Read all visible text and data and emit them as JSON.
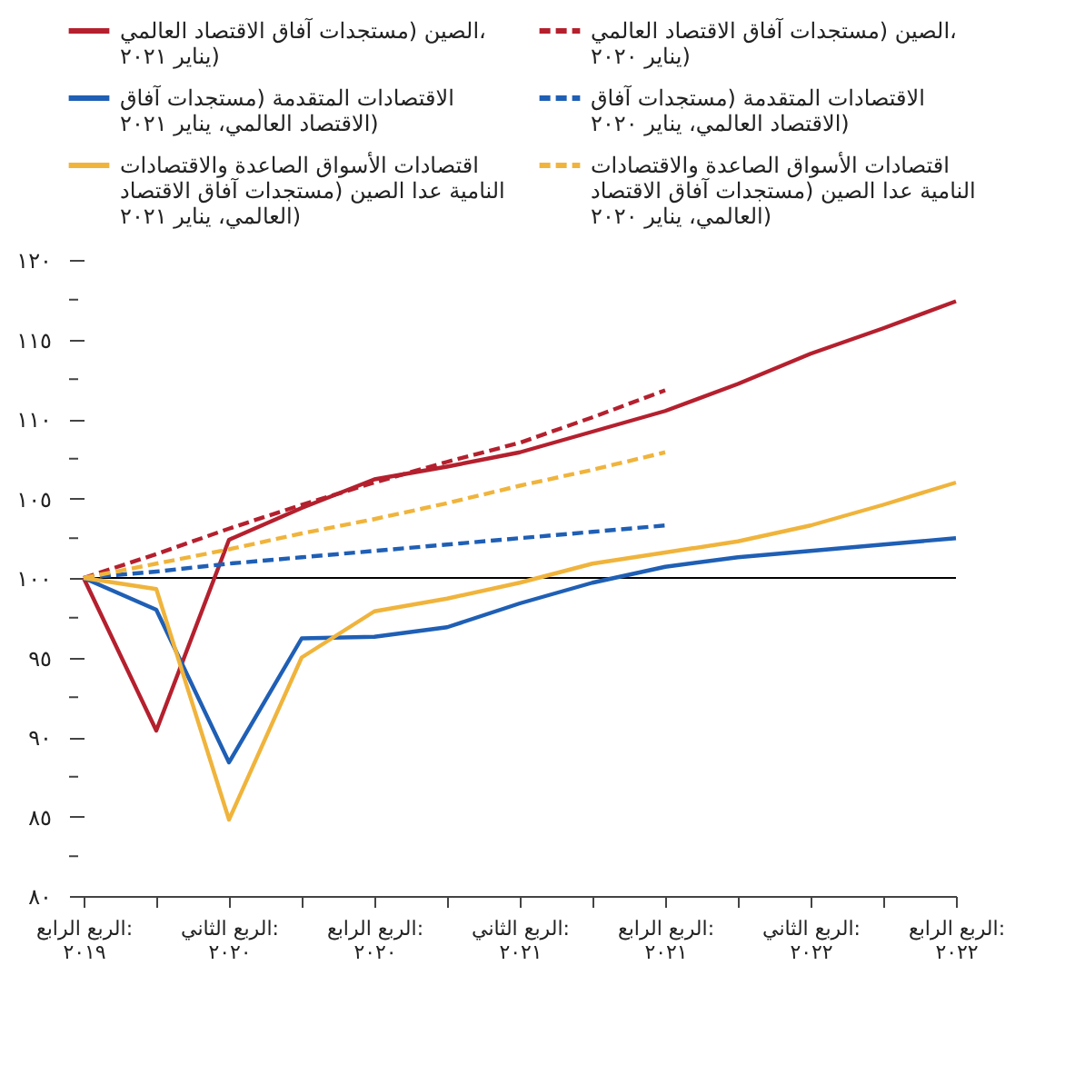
{
  "chart_data": {
    "type": "line",
    "categories": [
      "الربع الرابع: ٢٠١٩",
      null,
      "الربع الثاني: ٢٠٢٠",
      null,
      "الربع الرابع: ٢٠٢٠",
      null,
      "الربع الثاني: ٢٠٢١",
      null,
      "الربع الرابع: ٢٠٢١",
      null,
      "الربع الثاني: ٢٠٢٢",
      null,
      "الربع الرابع: ٢٠٢٢"
    ],
    "series": [
      {
        "name": "الصين (مستجدات آفاق الاقتصاد العالمي، يناير ٢٠٢١)",
        "color": "#b5202e",
        "line_style": "solid",
        "values": [
          100,
          90.4,
          102.4,
          104.4,
          106.2,
          107.0,
          107.9,
          109.2,
          110.5,
          112.2,
          114.1,
          115.7,
          117.4
        ]
      },
      {
        "name": "الصين (مستجدات آفاق الاقتصاد العالمي، يناير ٢٠٢٠)",
        "color": "#b5202e",
        "line_style": "dashed",
        "values": [
          100,
          101.5,
          103.1,
          104.6,
          106.0,
          107.3,
          108.5,
          110.1,
          111.8,
          null,
          null,
          null,
          null
        ]
      },
      {
        "name": "الاقتصادات المتقدمة (مستجدات آفاق الاقتصاد العالمي، يناير ٢٠٢١)",
        "color": "#1f5fb5",
        "line_style": "solid",
        "values": [
          100,
          98.0,
          88.4,
          96.2,
          96.3,
          96.9,
          98.4,
          99.7,
          100.7,
          101.3,
          101.7,
          102.1,
          102.5
        ]
      },
      {
        "name": "الاقتصادات المتقدمة (مستجدات آفاق الاقتصاد العالمي، يناير ٢٠٢٠)",
        "color": "#1f5fb5",
        "line_style": "dashed",
        "values": [
          100,
          100.4,
          100.9,
          101.3,
          101.7,
          102.1,
          102.5,
          102.9,
          103.3,
          null,
          null,
          null,
          null
        ]
      },
      {
        "name": "اقتصادات الأسواق الصاعدة والاقتصادات النامية عدا الصين (مستجدات آفاق الاقتصاد العالمي، يناير ٢٠٢١)",
        "color": "#f0b43c",
        "line_style": "solid",
        "values": [
          100,
          99.3,
          84.8,
          95.0,
          97.9,
          98.7,
          99.7,
          100.9,
          101.6,
          102.3,
          103.3,
          104.6,
          106.0
        ]
      },
      {
        "name": "اقتصادات الأسواق الصاعدة والاقتصادات النامية عدا الصين (مستجدات آفاق الاقتصاد العالمي، يناير ٢٠٢٠)",
        "color": "#f0b43c",
        "line_style": "dashed",
        "values": [
          100,
          100.9,
          101.8,
          102.8,
          103.7,
          104.7,
          105.8,
          106.8,
          107.9,
          null,
          null,
          null,
          null
        ]
      }
    ],
    "ylim": [
      80,
      120
    ],
    "yticks": [
      {
        "value": 80,
        "label": "٨٠"
      },
      {
        "value": 82.5,
        "label": null
      },
      {
        "value": 85,
        "label": "٨٥"
      },
      {
        "value": 87.5,
        "label": null
      },
      {
        "value": 90,
        "label": "٩٠"
      },
      {
        "value": 92.5,
        "label": null
      },
      {
        "value": 95,
        "label": "٩٥"
      },
      {
        "value": 97.5,
        "label": null
      },
      {
        "value": 100,
        "label": "١٠٠"
      },
      {
        "value": 102.5,
        "label": null
      },
      {
        "value": 105,
        "label": "١٠٥"
      },
      {
        "value": 107.5,
        "label": null
      },
      {
        "value": 110,
        "label": "١١٠"
      },
      {
        "value": 112.5,
        "label": null
      },
      {
        "value": 115,
        "label": "١١٥"
      },
      {
        "value": 117.5,
        "label": null
      },
      {
        "value": 120,
        "label": "١٢٠"
      }
    ],
    "ref_lines": [
      {
        "axis": "y",
        "value": 100,
        "color": "#000000"
      }
    ],
    "grid": false,
    "legend": "top"
  }
}
